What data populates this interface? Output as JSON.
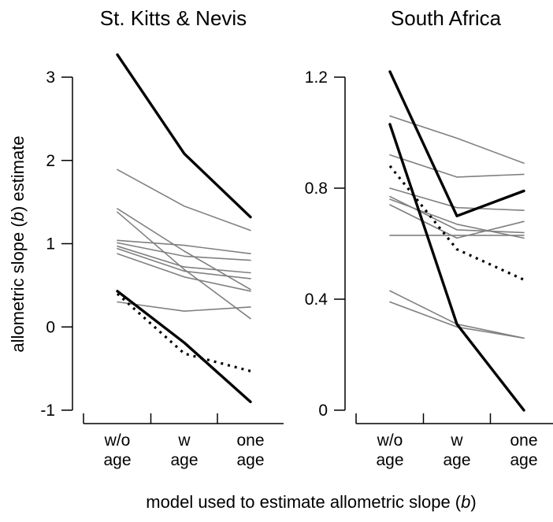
{
  "ylabel_parts": [
    "allometric slope (",
    "b",
    ") estimate"
  ],
  "xlabel_parts": [
    "model used to estimate allometric slope (",
    "b",
    ")"
  ],
  "colors": {
    "bold": "#000000",
    "thin": "#808080",
    "dotted": "#000000"
  },
  "chart_data": [
    {
      "type": "line",
      "title": "St. Kitts & Nevis",
      "categories": [
        [
          "w/o",
          "age"
        ],
        [
          "w",
          "age"
        ],
        [
          "one",
          "age"
        ]
      ],
      "ylim": [
        -1,
        3.3
      ],
      "yticks": [
        -1,
        0,
        1,
        2,
        3
      ],
      "ytick_labels": [
        "-1",
        "0",
        "1",
        "2",
        "3"
      ],
      "grid": false,
      "series": [
        {
          "style": "bold",
          "values": [
            3.27,
            2.08,
            1.32
          ]
        },
        {
          "style": "bold",
          "values": [
            0.43,
            -0.19,
            -0.9
          ]
        },
        {
          "style": "dotted",
          "values": [
            0.4,
            -0.32,
            -0.53
          ]
        },
        {
          "style": "thin",
          "values": [
            1.89,
            1.45,
            1.16
          ]
        },
        {
          "style": "thin",
          "values": [
            1.42,
            0.91,
            0.45
          ]
        },
        {
          "style": "thin",
          "values": [
            1.38,
            0.69,
            0.1
          ]
        },
        {
          "style": "thin",
          "values": [
            1.04,
            0.98,
            0.88
          ]
        },
        {
          "style": "thin",
          "values": [
            1.01,
            0.85,
            0.8
          ]
        },
        {
          "style": "thin",
          "values": [
            0.97,
            0.72,
            0.65
          ]
        },
        {
          "style": "thin",
          "values": [
            0.94,
            0.67,
            0.58
          ]
        },
        {
          "style": "thin",
          "values": [
            0.88,
            0.6,
            0.43
          ]
        },
        {
          "style": "thin",
          "values": [
            0.3,
            0.19,
            0.24
          ]
        }
      ]
    },
    {
      "type": "line",
      "title": "South Africa",
      "categories": [
        [
          "w/o",
          "age"
        ],
        [
          "w",
          "age"
        ],
        [
          "one",
          "age"
        ]
      ],
      "ylim": [
        0,
        1.22
      ],
      "yticks": [
        0,
        0.4,
        0.8,
        1.2
      ],
      "ytick_labels": [
        "0",
        "0.4",
        "0.8",
        "1.2"
      ],
      "grid": false,
      "series": [
        {
          "style": "bold",
          "values": [
            1.22,
            0.7,
            0.79
          ]
        },
        {
          "style": "bold",
          "values": [
            1.03,
            0.31,
            0.0
          ]
        },
        {
          "style": "dotted",
          "values": [
            0.88,
            0.58,
            0.47
          ]
        },
        {
          "style": "thin",
          "values": [
            1.06,
            0.98,
            0.89
          ]
        },
        {
          "style": "thin",
          "values": [
            0.92,
            0.84,
            0.85
          ]
        },
        {
          "style": "thin",
          "values": [
            0.8,
            0.73,
            0.72
          ]
        },
        {
          "style": "thin",
          "values": [
            0.77,
            0.65,
            0.64
          ]
        },
        {
          "style": "thin",
          "values": [
            0.76,
            0.67,
            0.62
          ]
        },
        {
          "style": "thin",
          "values": [
            0.74,
            0.62,
            0.68
          ]
        },
        {
          "style": "thin",
          "values": [
            0.63,
            0.63,
            0.63
          ]
        },
        {
          "style": "thin",
          "values": [
            0.43,
            0.31,
            0.26
          ]
        },
        {
          "style": "thin",
          "values": [
            0.39,
            0.3,
            0.26
          ]
        }
      ]
    }
  ]
}
